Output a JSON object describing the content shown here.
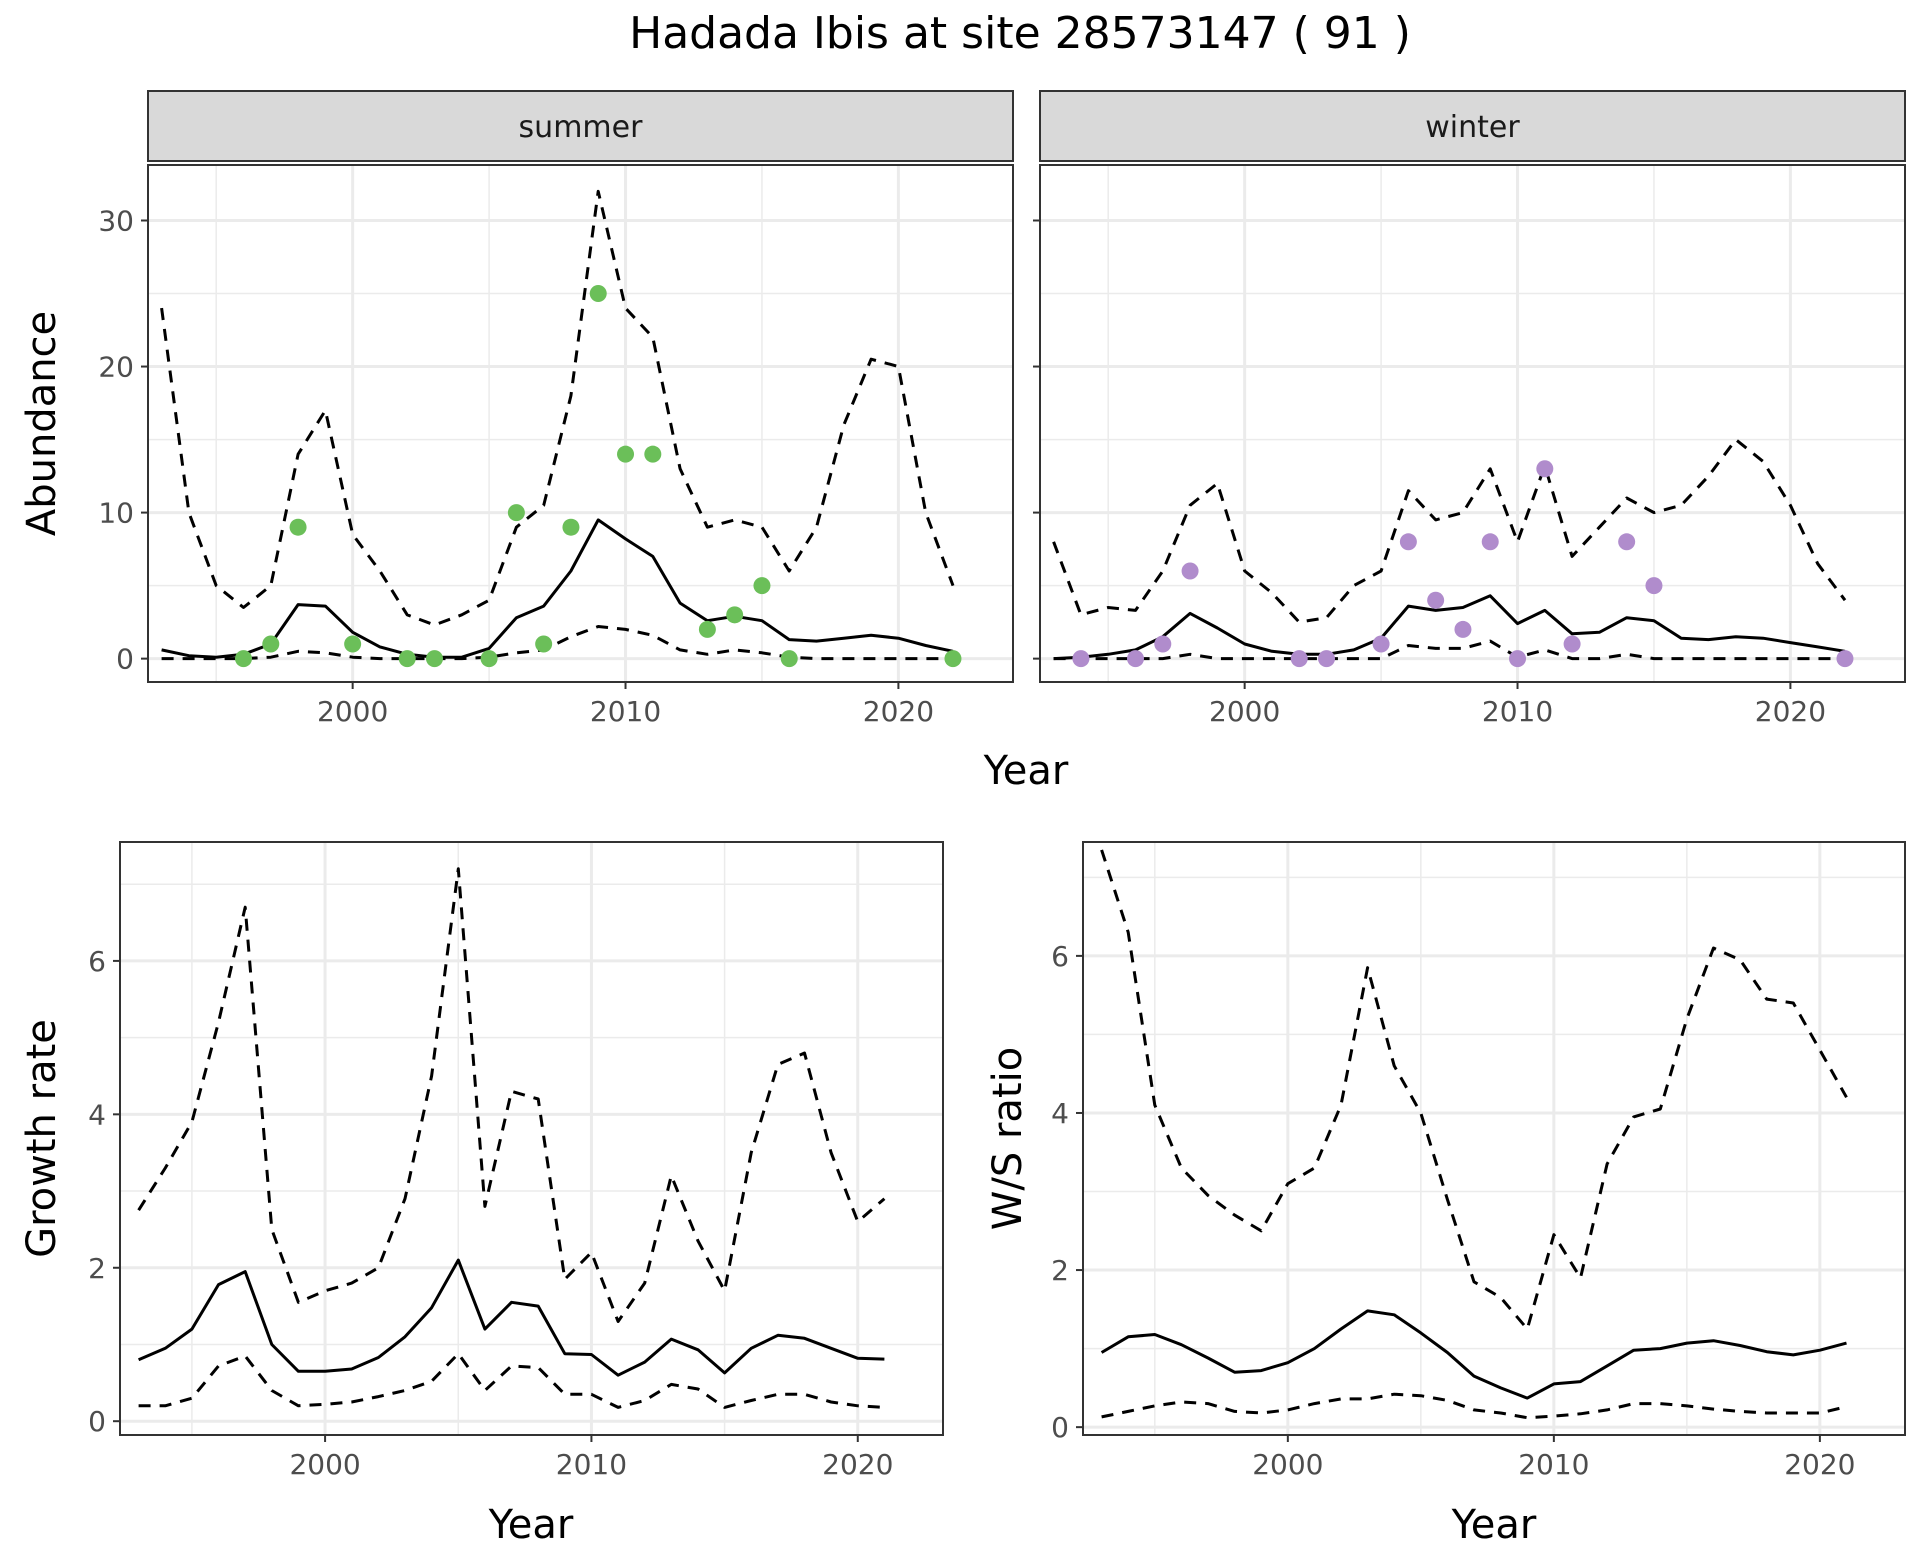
{
  "title": "Hadada Ibis at site 28573147 ( 91 )",
  "colors": {
    "summer_points": "#6bbf59",
    "winter_points": "#b08ccc",
    "line": "#000000",
    "grid": "#ebebeb",
    "strip_bg": "#d9d9d9"
  },
  "chart_data": [
    {
      "type": "line",
      "facet": "summer",
      "xlabel": "Year",
      "ylabel": "Abundance",
      "xlim": [
        1992.5,
        2024.2
      ],
      "ylim": [
        -1.6,
        33.8
      ],
      "xticks": [
        2000,
        2010,
        2020
      ],
      "yticks": [
        0,
        10,
        20,
        30
      ],
      "grid": true,
      "lines": [
        {
          "style": "dashed",
          "x": [
            1993,
            1994,
            1995,
            1996,
            1997,
            1998,
            1999,
            2000,
            2001,
            2002,
            2003,
            2004,
            2005,
            2006,
            2007,
            2008,
            2009,
            2010,
            2011,
            2012,
            2013,
            2014,
            2015,
            2016,
            2017,
            2018,
            2019,
            2020,
            2021,
            2022
          ],
          "y": [
            24,
            10,
            5,
            3.5,
            5,
            14,
            17,
            8.5,
            6,
            3,
            2.3,
            3,
            4,
            9,
            10.5,
            18,
            32,
            24,
            22,
            13,
            9,
            9.5,
            9,
            6,
            9,
            16,
            20.5,
            20,
            10,
            5
          ]
        },
        {
          "style": "solid",
          "x": [
            1993,
            1994,
            1995,
            1996,
            1997,
            1998,
            1999,
            2000,
            2001,
            2002,
            2003,
            2004,
            2005,
            2006,
            2007,
            2008,
            2009,
            2010,
            2011,
            2012,
            2013,
            2014,
            2015,
            2016,
            2017,
            2018,
            2019,
            2020,
            2021,
            2022
          ],
          "y": [
            0.6,
            0.2,
            0.1,
            0.3,
            1.0,
            3.7,
            3.6,
            1.8,
            0.8,
            0.3,
            0.1,
            0.1,
            0.7,
            2.8,
            3.6,
            6.0,
            9.5,
            8.2,
            7.0,
            3.8,
            2.6,
            2.9,
            2.6,
            1.3,
            1.2,
            1.4,
            1.6,
            1.4,
            0.9,
            0.5
          ]
        },
        {
          "style": "dashed",
          "x": [
            1993,
            1994,
            1995,
            1996,
            1997,
            1998,
            1999,
            2000,
            2001,
            2002,
            2003,
            2004,
            2005,
            2006,
            2007,
            2008,
            2009,
            2010,
            2011,
            2012,
            2013,
            2014,
            2015,
            2016,
            2017,
            2018,
            2019,
            2020,
            2021,
            2022
          ],
          "y": [
            0,
            0,
            0,
            0,
            0.1,
            0.5,
            0.4,
            0.1,
            0,
            0,
            0,
            0,
            0.1,
            0.4,
            0.6,
            1.5,
            2.2,
            2.0,
            1.6,
            0.6,
            0.3,
            0.6,
            0.4,
            0.1,
            0,
            0,
            0,
            0,
            0,
            0
          ]
        }
      ],
      "points": {
        "x": [
          1996,
          1997,
          1998,
          2000,
          2002,
          2003,
          2005,
          2006,
          2007,
          2008,
          2009,
          2010,
          2011,
          2013,
          2014,
          2015,
          2016,
          2022
        ],
        "y": [
          0,
          1,
          9,
          1,
          0,
          0,
          0,
          10,
          1,
          9,
          25,
          14,
          14,
          2,
          3,
          5,
          0,
          0
        ]
      }
    },
    {
      "type": "line",
      "facet": "winter",
      "xlabel": "Year",
      "ylabel": "",
      "xlim": [
        1992.5,
        2024.2
      ],
      "ylim": [
        -1.6,
        33.8
      ],
      "xticks": [
        2000,
        2010,
        2020
      ],
      "yticks": [
        0,
        10,
        20,
        30
      ],
      "grid": true,
      "lines": [
        {
          "style": "dashed",
          "x": [
            1993,
            1994,
            1995,
            1996,
            1997,
            1998,
            1999,
            2000,
            2001,
            2002,
            2003,
            2004,
            2005,
            2006,
            2007,
            2008,
            2009,
            2010,
            2011,
            2012,
            2013,
            2014,
            2015,
            2016,
            2017,
            2018,
            2019,
            2020,
            2021,
            2022
          ],
          "y": [
            8,
            3,
            3.5,
            3.3,
            6,
            10.5,
            12,
            6,
            4.5,
            2.5,
            2.8,
            5,
            6,
            11.5,
            9.5,
            10,
            13,
            8,
            13.2,
            7,
            9,
            11,
            10,
            10.5,
            12.5,
            15,
            13.5,
            10.5,
            6.5,
            4
          ]
        },
        {
          "style": "solid",
          "x": [
            1993,
            1994,
            1995,
            1996,
            1997,
            1998,
            1999,
            2000,
            2001,
            2002,
            2003,
            2004,
            2005,
            2006,
            2007,
            2008,
            2009,
            2010,
            2011,
            2012,
            2013,
            2014,
            2015,
            2016,
            2017,
            2018,
            2019,
            2020,
            2021,
            2022
          ],
          "y": [
            0,
            0.1,
            0.3,
            0.6,
            1.5,
            3.1,
            2.1,
            1.0,
            0.5,
            0.3,
            0.3,
            0.6,
            1.4,
            3.6,
            3.3,
            3.5,
            4.3,
            2.4,
            3.3,
            1.7,
            1.8,
            2.8,
            2.6,
            1.4,
            1.3,
            1.5,
            1.4,
            1.1,
            0.8,
            0.5
          ]
        },
        {
          "style": "dashed",
          "x": [
            1993,
            1994,
            1995,
            1996,
            1997,
            1998,
            1999,
            2000,
            2001,
            2002,
            2003,
            2004,
            2005,
            2006,
            2007,
            2008,
            2009,
            2010,
            2011,
            2012,
            2013,
            2014,
            2015,
            2016,
            2017,
            2018,
            2019,
            2020,
            2021,
            2022
          ],
          "y": [
            0,
            0,
            0,
            0,
            0,
            0.3,
            0,
            0,
            0,
            0,
            0,
            0,
            0,
            0.9,
            0.7,
            0.7,
            1.2,
            0.1,
            0.6,
            0,
            0,
            0.3,
            0,
            0,
            0,
            0,
            0,
            0,
            0,
            0
          ]
        }
      ],
      "points": {
        "x": [
          1994,
          1996,
          1997,
          1998,
          2002,
          2003,
          2005,
          2006,
          2007,
          2008,
          2009,
          2010,
          2011,
          2012,
          2014,
          2015,
          2022
        ],
        "y": [
          0,
          0,
          1,
          6,
          0,
          0,
          1,
          8,
          4,
          2,
          8,
          0,
          13,
          1,
          8,
          5,
          0
        ]
      }
    },
    {
      "type": "line",
      "xlabel": "Year",
      "ylabel": "Growth rate",
      "xlim": [
        1992.3,
        2023.2
      ],
      "ylim": [
        -0.18,
        7.55
      ],
      "xticks": [
        2000,
        2010,
        2020
      ],
      "yticks": [
        0,
        2,
        4,
        6
      ],
      "grid": true,
      "lines": [
        {
          "style": "dashed",
          "x": [
            1993,
            1994,
            1995,
            1996,
            1997,
            1998,
            1999,
            2000,
            2001,
            2002,
            2003,
            2004,
            2005,
            2006,
            2007,
            2008,
            2009,
            2010,
            2011,
            2012,
            2013,
            2014,
            2015,
            2016,
            2017,
            2018,
            2019,
            2020,
            2021
          ],
          "y": [
            2.75,
            3.3,
            3.9,
            5.2,
            6.7,
            2.5,
            1.55,
            1.7,
            1.8,
            2.0,
            2.9,
            4.5,
            7.2,
            2.8,
            4.3,
            4.2,
            1.85,
            2.2,
            1.3,
            1.8,
            3.2,
            2.35,
            1.7,
            3.5,
            4.65,
            4.8,
            3.5,
            2.6,
            2.9
          ]
        },
        {
          "style": "solid",
          "x": [
            1993,
            1994,
            1995,
            1996,
            1997,
            1998,
            1999,
            2000,
            2001,
            2002,
            2003,
            2004,
            2005,
            2006,
            2007,
            2008,
            2009,
            2010,
            2011,
            2012,
            2013,
            2014,
            2015,
            2016,
            2017,
            2018,
            2019,
            2020,
            2021
          ],
          "y": [
            0.8,
            0.95,
            1.2,
            1.78,
            1.95,
            1.0,
            0.65,
            0.65,
            0.68,
            0.83,
            1.1,
            1.48,
            2.1,
            1.2,
            1.55,
            1.5,
            0.88,
            0.87,
            0.6,
            0.77,
            1.07,
            0.93,
            0.63,
            0.95,
            1.12,
            1.08,
            0.95,
            0.82,
            0.81
          ]
        },
        {
          "style": "dashed",
          "x": [
            1993,
            1994,
            1995,
            1996,
            1997,
            1998,
            1999,
            2000,
            2001,
            2002,
            2003,
            2004,
            2005,
            2006,
            2007,
            2008,
            2009,
            2010,
            2011,
            2012,
            2013,
            2014,
            2015,
            2016,
            2017,
            2018,
            2019,
            2020,
            2021
          ],
          "y": [
            0.2,
            0.2,
            0.3,
            0.72,
            0.85,
            0.4,
            0.2,
            0.22,
            0.25,
            0.32,
            0.4,
            0.52,
            0.88,
            0.4,
            0.72,
            0.7,
            0.35,
            0.35,
            0.18,
            0.27,
            0.48,
            0.42,
            0.18,
            0.27,
            0.35,
            0.35,
            0.25,
            0.2,
            0.18
          ]
        }
      ]
    },
    {
      "type": "line",
      "xlabel": "Year",
      "ylabel": "W/S ratio",
      "xlim": [
        1992.3,
        2023.2
      ],
      "ylim": [
        -0.1,
        7.45
      ],
      "xticks": [
        2000,
        2010,
        2020
      ],
      "yticks": [
        0,
        2,
        4,
        6
      ],
      "grid": true,
      "lines": [
        {
          "style": "dashed",
          "x": [
            1993,
            1994,
            1995,
            1996,
            1997,
            1998,
            1999,
            2000,
            2001,
            2002,
            2003,
            2004,
            2005,
            2006,
            2007,
            2008,
            2009,
            2010,
            2011,
            2012,
            2013,
            2014,
            2015,
            2016,
            2017,
            2018,
            2019,
            2020,
            2021
          ],
          "y": [
            7.35,
            6.3,
            4.1,
            3.3,
            2.95,
            2.7,
            2.5,
            3.1,
            3.3,
            4.1,
            5.85,
            4.6,
            4.0,
            2.9,
            1.85,
            1.65,
            1.25,
            2.45,
            1.9,
            3.35,
            3.95,
            4.05,
            5.2,
            6.1,
            5.95,
            5.45,
            5.4,
            4.8,
            4.2
          ]
        },
        {
          "style": "solid",
          "x": [
            1993,
            1994,
            1995,
            1996,
            1997,
            1998,
            1999,
            2000,
            2001,
            2002,
            2003,
            2004,
            2005,
            2006,
            2007,
            2008,
            2009,
            2010,
            2011,
            2012,
            2013,
            2014,
            2015,
            2016,
            2017,
            2018,
            2019,
            2020,
            2021
          ],
          "y": [
            0.95,
            1.15,
            1.18,
            1.05,
            0.88,
            0.7,
            0.72,
            0.82,
            1.0,
            1.25,
            1.48,
            1.43,
            1.2,
            0.95,
            0.65,
            0.5,
            0.37,
            0.55,
            0.58,
            0.78,
            0.98,
            1.0,
            1.07,
            1.1,
            1.04,
            0.96,
            0.92,
            0.98,
            1.07
          ]
        },
        {
          "style": "dashed",
          "x": [
            1993,
            1994,
            1995,
            1996,
            1997,
            1998,
            1999,
            2000,
            2001,
            2002,
            2003,
            2004,
            2005,
            2006,
            2007,
            2008,
            2009,
            2010,
            2011,
            2012,
            2013,
            2014,
            2015,
            2016,
            2017,
            2018,
            2019,
            2020,
            2021
          ],
          "y": [
            0.13,
            0.2,
            0.27,
            0.32,
            0.3,
            0.2,
            0.18,
            0.22,
            0.3,
            0.36,
            0.36,
            0.42,
            0.4,
            0.34,
            0.22,
            0.18,
            0.12,
            0.14,
            0.17,
            0.22,
            0.3,
            0.3,
            0.27,
            0.23,
            0.2,
            0.18,
            0.18,
            0.18,
            0.26
          ]
        }
      ]
    }
  ]
}
